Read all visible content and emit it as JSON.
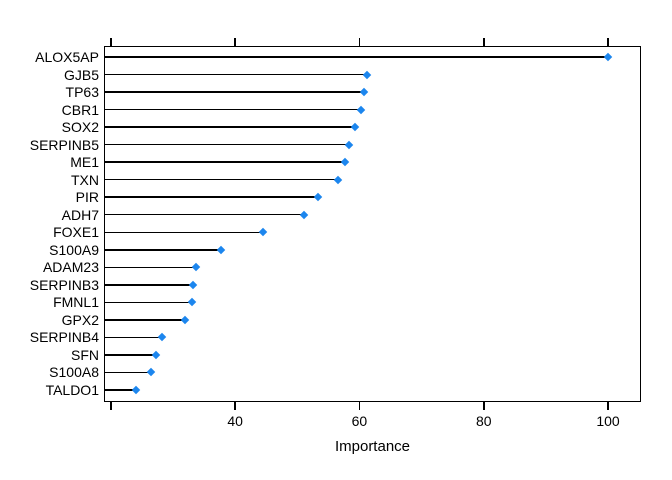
{
  "chart_data": {
    "type": "dot",
    "orientation": "horizontal",
    "title": "",
    "xlabel": "Importance",
    "ylabel": "",
    "categories": [
      "ALOX5AP",
      "GJB5",
      "TP63",
      "CBR1",
      "SOX2",
      "SERPINB5",
      "ME1",
      "TXN",
      "PIR",
      "ADH7",
      "FOXE1",
      "S100A9",
      "ADAM23",
      "SERPINB3",
      "FMNL1",
      "GPX2",
      "SERPINB4",
      "SFN",
      "S100A8",
      "TALDO1"
    ],
    "values": [
      100,
      61.2,
      60.7,
      60.2,
      59.3,
      58.3,
      57.6,
      56.6,
      53.3,
      51.0,
      44.5,
      37.7,
      33.7,
      33.2,
      33.0,
      32.0,
      28.2,
      27.2,
      26.5,
      24.0
    ],
    "xlim": [
      18.9,
      105.3
    ],
    "xticks": [
      20,
      40,
      60,
      80,
      100
    ],
    "xtick_labels": [
      "",
      "40",
      "60",
      "80",
      "100"
    ],
    "grid": false,
    "legend": null,
    "point_shape": "diamond",
    "colors": {
      "point": "#1C86EE",
      "line": "#000000",
      "text": "#000000",
      "background": "#FFFFFF"
    }
  }
}
